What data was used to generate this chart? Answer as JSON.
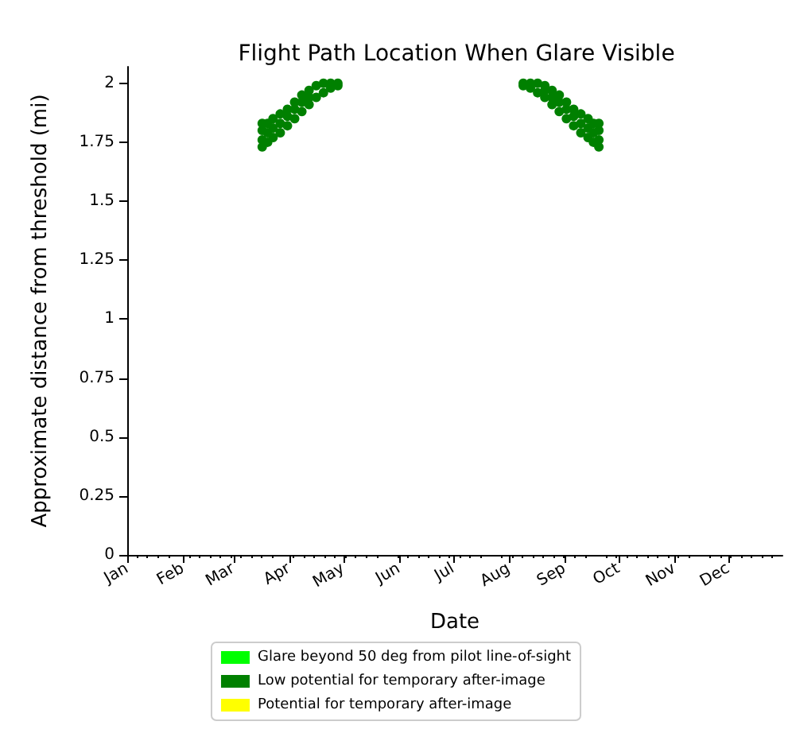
{
  "chart_data": {
    "type": "scatter",
    "title": "Flight Path Location When Glare Visible",
    "xlabel": "Date",
    "ylabel": "Approximate distance from threshold (mi)",
    "xlim": [
      "--01-01",
      "--12-31"
    ],
    "xticks": [
      {
        "value": "--01-01",
        "label": "Jan"
      },
      {
        "value": "--02-01",
        "label": "Feb"
      },
      {
        "value": "--03-01",
        "label": "Mar"
      },
      {
        "value": "--04-01",
        "label": "Apr"
      },
      {
        "value": "--05-01",
        "label": "May"
      },
      {
        "value": "--06-01",
        "label": "Jun"
      },
      {
        "value": "--07-01",
        "label": "Jul"
      },
      {
        "value": "--08-01",
        "label": "Aug"
      },
      {
        "value": "--09-01",
        "label": "Sep"
      },
      {
        "value": "--10-01",
        "label": "Oct"
      },
      {
        "value": "--11-01",
        "label": "Nov"
      },
      {
        "value": "--12-01",
        "label": "Dec"
      }
    ],
    "ylim": [
      0,
      2.07
    ],
    "yticks": [
      0,
      0.25,
      0.5,
      0.75,
      1,
      1.25,
      1.5,
      1.75,
      2
    ],
    "grid": false,
    "legend": "bottom",
    "marker": "circle",
    "series": [
      {
        "name": "Glare beyond 50 deg from pilot line-of-sight",
        "color": "#00ff00"
      },
      {
        "name": "Low potential for temporary after-image",
        "color": "#008000",
        "x": [
          "--03-17",
          "--03-17",
          "--03-17",
          "--03-17",
          "--03-20",
          "--03-20",
          "--03-20",
          "--03-23",
          "--03-23",
          "--03-23",
          "--03-27",
          "--03-27",
          "--03-27",
          "--03-31",
          "--03-31",
          "--03-31",
          "--04-04",
          "--04-04",
          "--04-04",
          "--04-08",
          "--04-08",
          "--04-08",
          "--04-12",
          "--04-12",
          "--04-12",
          "--04-16",
          "--04-16",
          "--04-20",
          "--04-20",
          "--04-24",
          "--04-24",
          "--04-28",
          "--04-28",
          "--08-09",
          "--08-09",
          "--08-13",
          "--08-13",
          "--08-17",
          "--08-17",
          "--08-21",
          "--08-21",
          "--08-21",
          "--08-25",
          "--08-25",
          "--08-25",
          "--08-29",
          "--08-29",
          "--08-29",
          "--09-02",
          "--09-02",
          "--09-02",
          "--09-06",
          "--09-06",
          "--09-06",
          "--09-10",
          "--09-10",
          "--09-10",
          "--09-14",
          "--09-14",
          "--09-14",
          "--09-17",
          "--09-17",
          "--09-17",
          "--09-20",
          "--09-20",
          "--09-20",
          "--09-20"
        ],
        "values": [
          1.73,
          1.76,
          1.8,
          1.83,
          1.75,
          1.79,
          1.83,
          1.77,
          1.81,
          1.85,
          1.79,
          1.83,
          1.87,
          1.82,
          1.86,
          1.89,
          1.85,
          1.89,
          1.92,
          1.88,
          1.92,
          1.95,
          1.91,
          1.94,
          1.97,
          1.94,
          1.99,
          1.96,
          2.0,
          1.98,
          2.0,
          1.99,
          2.0,
          1.99,
          2.0,
          1.98,
          2.0,
          1.96,
          2.0,
          1.94,
          1.97,
          1.99,
          1.91,
          1.94,
          1.97,
          1.88,
          1.92,
          1.95,
          1.85,
          1.89,
          1.92,
          1.82,
          1.86,
          1.89,
          1.79,
          1.83,
          1.87,
          1.77,
          1.81,
          1.85,
          1.75,
          1.79,
          1.83,
          1.73,
          1.76,
          1.8,
          1.83
        ]
      },
      {
        "name": "Potential for temporary after-image",
        "color": "#ffff00"
      }
    ]
  }
}
